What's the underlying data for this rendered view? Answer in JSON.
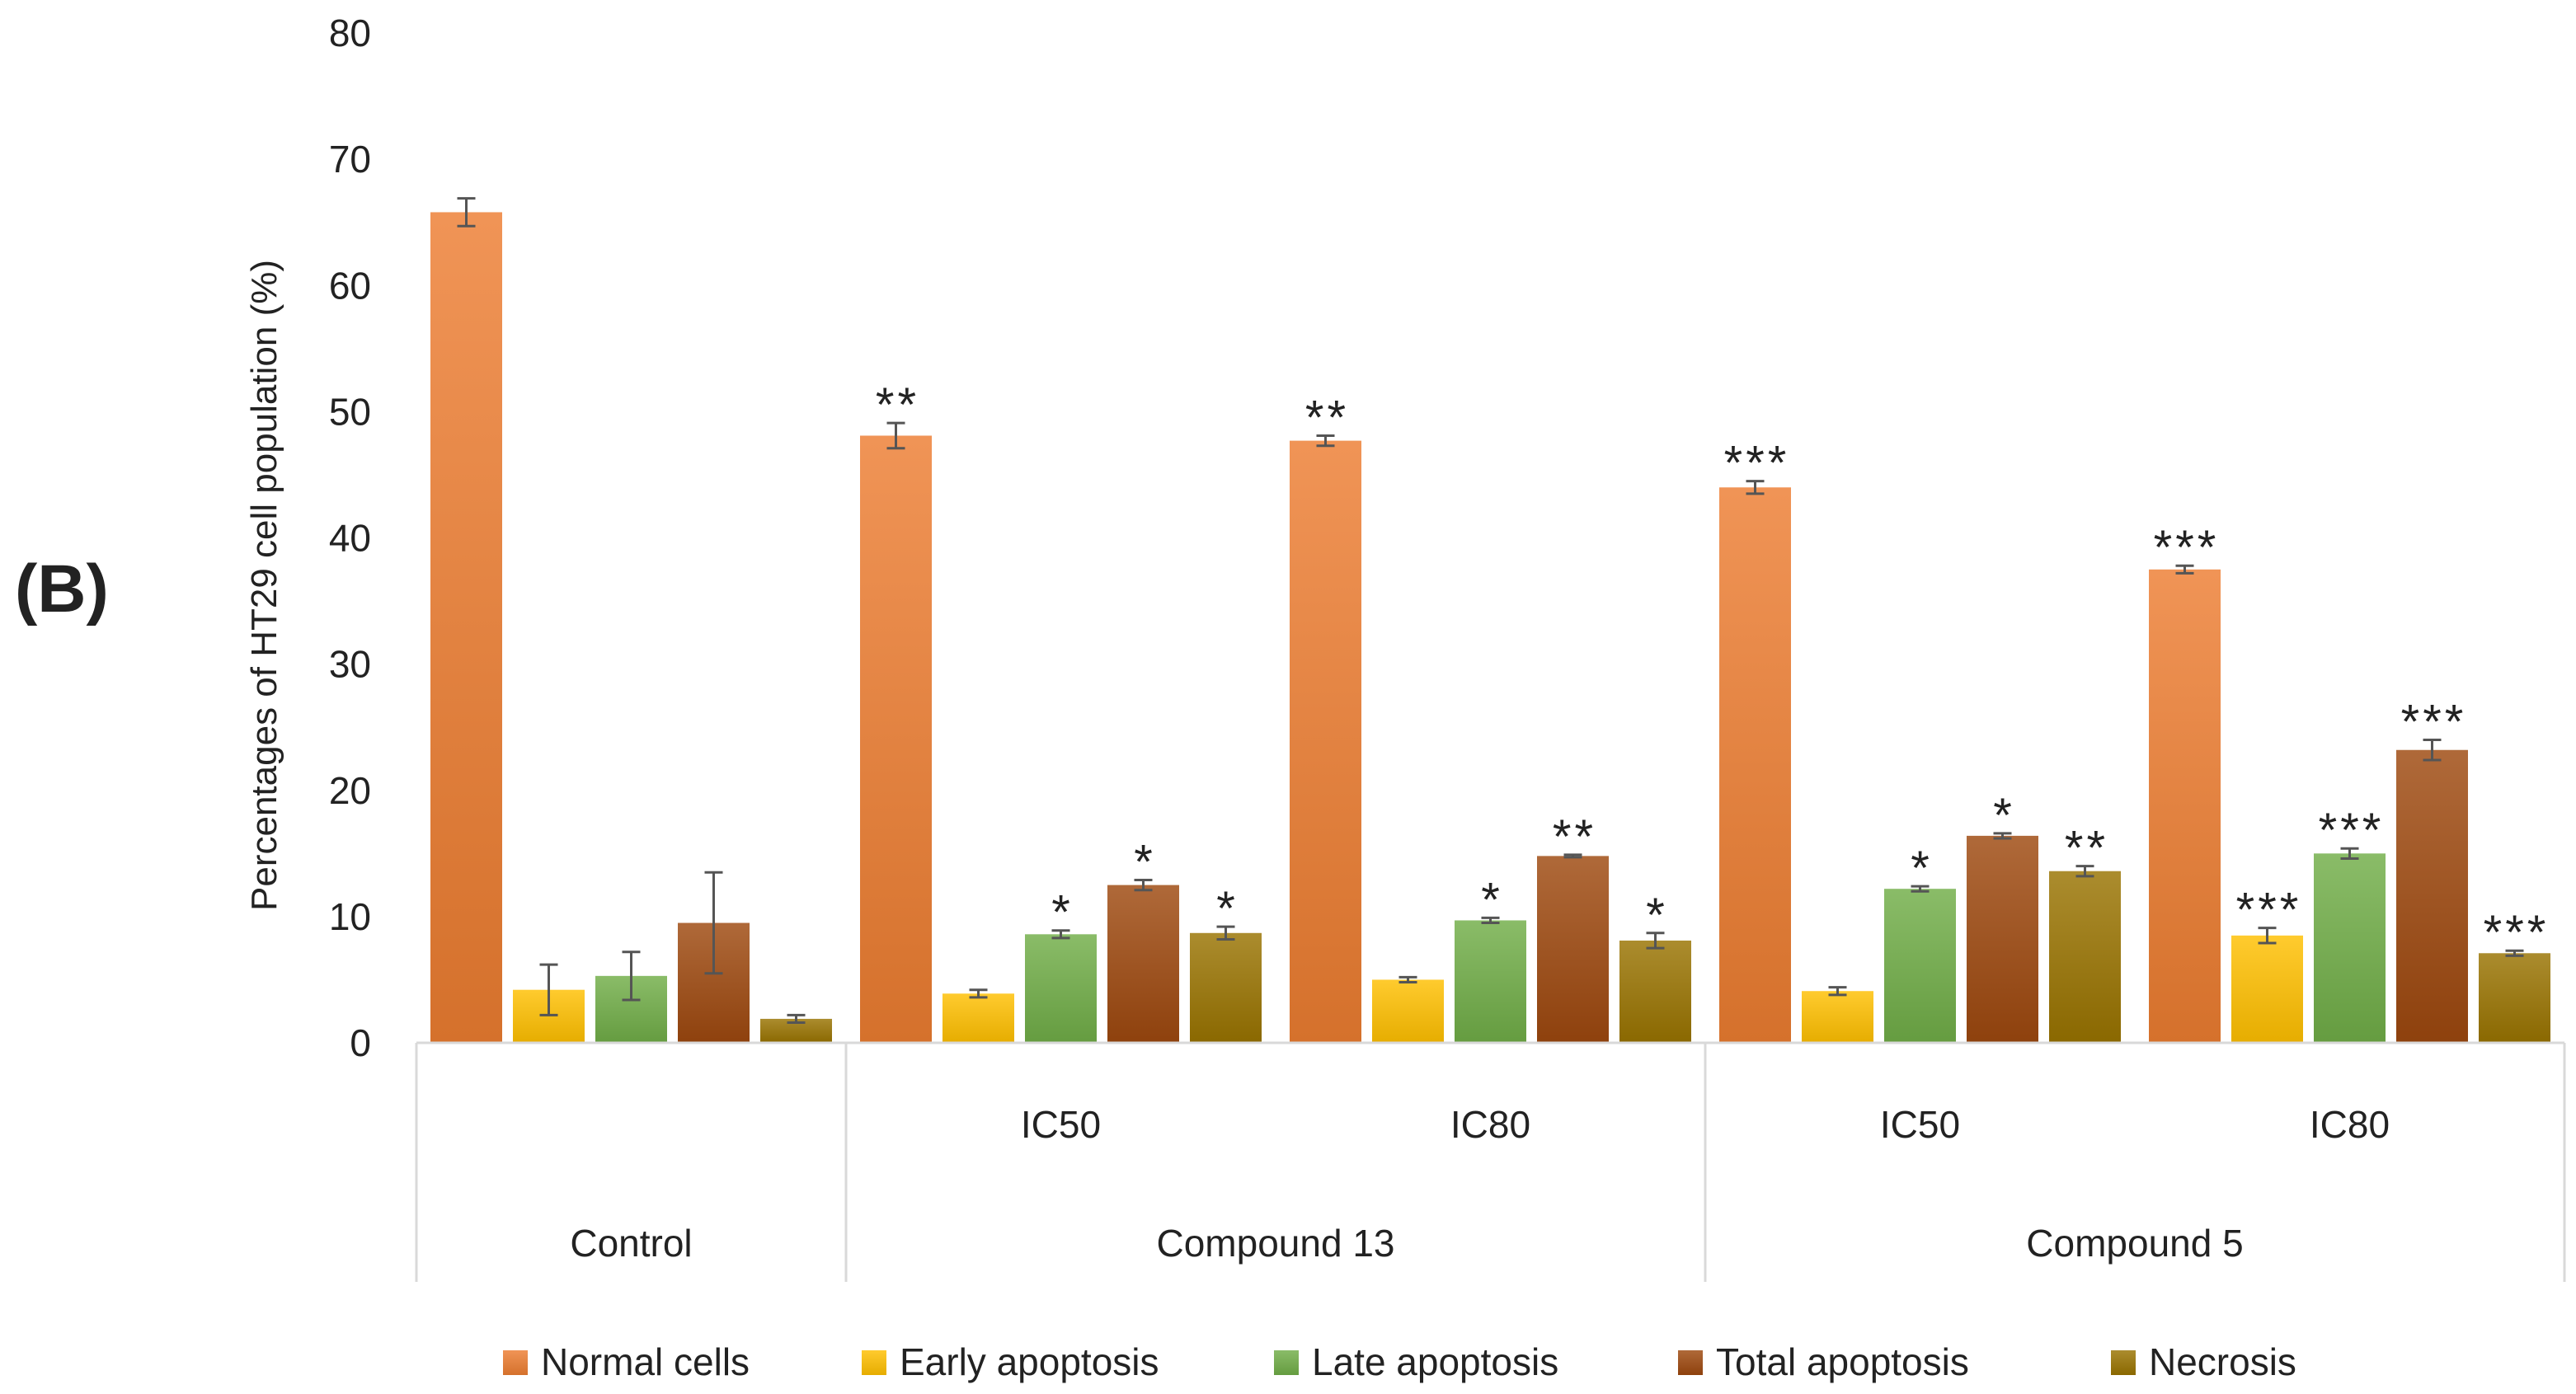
{
  "panel_label": "(B)",
  "colors": {
    "Normal cells": "#ED7D31",
    "Early apoptosis": "#FFC000",
    "Late apoptosis": "#70AD47",
    "Total apoptosis": "#9E480E",
    "Necrosis": "#997300",
    "grid": "#d9d9d9",
    "error_bar": "#555555"
  },
  "chart_data": {
    "type": "bar",
    "title": "",
    "ylabel": "Percentages of HT29 cell population (%)",
    "ylim": [
      0,
      80
    ],
    "yticks": [
      0,
      10,
      20,
      30,
      40,
      50,
      60,
      70,
      80
    ],
    "grid": false,
    "legend_position": "bottom",
    "categories": [
      "Control",
      "Compound 13 IC50",
      "Compound 13 IC80",
      "Compound 5 IC50",
      "Compound 5 IC80"
    ],
    "group_labels": [
      "",
      "IC50",
      "IC80",
      "IC50",
      "IC80"
    ],
    "super_groups": [
      {
        "label": "Control",
        "span": [
          0,
          0
        ]
      },
      {
        "label": "Compound 13",
        "span": [
          1,
          2
        ]
      },
      {
        "label": "Compound 5",
        "span": [
          3,
          4
        ]
      }
    ],
    "series": [
      {
        "name": "Normal cells",
        "values": [
          65.8,
          48.1,
          47.7,
          44.0,
          37.5
        ],
        "errors": [
          1.1,
          1.0,
          0.4,
          0.5,
          0.3
        ],
        "significance": [
          "",
          "**",
          "**",
          "***",
          "***"
        ]
      },
      {
        "name": "Early apoptosis",
        "values": [
          4.2,
          3.9,
          5.0,
          4.1,
          8.5
        ],
        "errors": [
          2.0,
          0.3,
          0.2,
          0.3,
          0.6
        ],
        "significance": [
          "",
          "",
          "",
          "",
          "***"
        ]
      },
      {
        "name": "Late apoptosis",
        "values": [
          5.3,
          8.6,
          9.7,
          12.2,
          15.0
        ],
        "errors": [
          1.9,
          0.3,
          0.2,
          0.2,
          0.4
        ],
        "significance": [
          "",
          "*",
          "*",
          "*",
          "***"
        ]
      },
      {
        "name": "Total apoptosis",
        "values": [
          9.5,
          12.5,
          14.8,
          16.4,
          23.2
        ],
        "errors": [
          4.0,
          0.4,
          0.1,
          0.2,
          0.8
        ],
        "significance": [
          "",
          "*",
          "**",
          "*",
          "***"
        ]
      },
      {
        "name": "Necrosis",
        "values": [
          1.9,
          8.7,
          8.1,
          13.6,
          7.1
        ],
        "errors": [
          0.3,
          0.5,
          0.6,
          0.4,
          0.2
        ],
        "significance": [
          "",
          "*",
          "*",
          "**",
          "***"
        ]
      }
    ]
  }
}
